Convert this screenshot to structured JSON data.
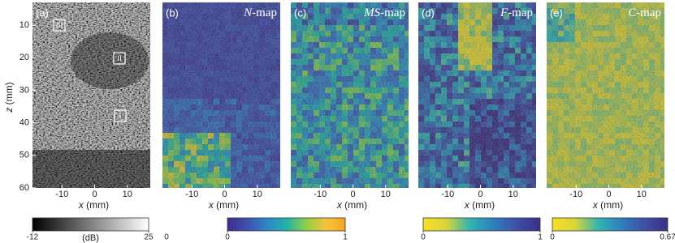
{
  "axes": {
    "xlim": [
      -19,
      17
    ],
    "ylim": [
      3,
      60
    ],
    "xticks": [
      -10,
      0,
      10
    ],
    "yticks": [
      10,
      20,
      30,
      40,
      50,
      60
    ],
    "xlabel": {
      "var": "x",
      "unit": "(mm)"
    },
    "ylabel": {
      "var": "z",
      "unit": "(mm)"
    }
  },
  "panels": [
    {
      "label": "(a)",
      "roi_labels": [
        "III",
        "II",
        "I"
      ]
    },
    {
      "label": "(b)",
      "title_symbol": "N",
      "title_rest": "-map"
    },
    {
      "label": "(c)",
      "title_symbol": "MS",
      "title_rest": "-map"
    },
    {
      "label": "(d)",
      "title_symbol": "F",
      "title_rest": "-map"
    },
    {
      "label": "(e)",
      "title_symbol": "C",
      "title_rest": "-map"
    }
  ],
  "colorbars": [
    {
      "range": [
        -12,
        25
      ],
      "ticks": [
        -12,
        25
      ],
      "unit": "(dB)",
      "colors": [
        "#000000",
        "#ffffff"
      ]
    },
    {
      "range": [
        0,
        1
      ],
      "ticks": [
        0,
        1
      ],
      "colors": [
        "#3e2d8c",
        "#3f50b0",
        "#2f86c8",
        "#1fb3a8",
        "#8fcf4a",
        "#f5c43a",
        "#f6a623"
      ]
    },
    {
      "range": [
        0,
        1
      ],
      "ticks": [
        0,
        1
      ],
      "colors": [
        "#f7e024",
        "#d8d43a",
        "#2fb5b0",
        "#2d7fbd",
        "#3f4fa8",
        "#3a2f84"
      ]
    },
    {
      "range": [
        0,
        0.67
      ],
      "ticks": [
        0,
        0.67
      ],
      "colors": [
        "#f7e024",
        "#d8d43a",
        "#2fb5b0",
        "#2d7fbd",
        "#3f4fa8",
        "#3a2f84"
      ]
    }
  ],
  "stray_tick": 0
}
